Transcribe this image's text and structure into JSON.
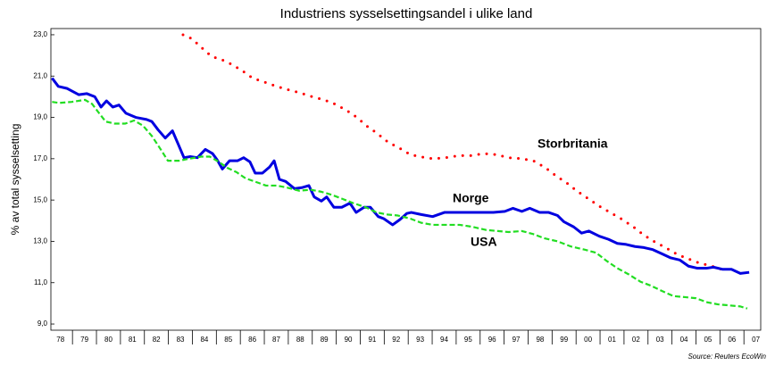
{
  "chart_data": {
    "type": "line",
    "title": "Industriens sysselsettingsandel i ulike land",
    "y_label": "% av total sysselsetting",
    "source": "Source: Reuters EcoWin",
    "xlim": [
      1978.1,
      2007.7
    ],
    "ylim": [
      8.7,
      23.3
    ],
    "yticks": [
      {
        "value": 9,
        "label": "9,0"
      },
      {
        "value": 11,
        "label": "11,0"
      },
      {
        "value": 13,
        "label": "13,0"
      },
      {
        "value": 15,
        "label": "15,0"
      },
      {
        "value": 17,
        "label": "17,0"
      },
      {
        "value": 19,
        "label": "19,0"
      },
      {
        "value": 21,
        "label": "21,0"
      },
      {
        "value": 23,
        "label": "23,0"
      }
    ],
    "xticks": [
      {
        "value": 1978,
        "label": "78"
      },
      {
        "value": 1979,
        "label": "79"
      },
      {
        "value": 1980,
        "label": "80"
      },
      {
        "value": 1981,
        "label": "81"
      },
      {
        "value": 1982,
        "label": "82"
      },
      {
        "value": 1983,
        "label": "83"
      },
      {
        "value": 1984,
        "label": "84"
      },
      {
        "value": 1985,
        "label": "85"
      },
      {
        "value": 1986,
        "label": "86"
      },
      {
        "value": 1987,
        "label": "87"
      },
      {
        "value": 1988,
        "label": "88"
      },
      {
        "value": 1989,
        "label": "89"
      },
      {
        "value": 1990,
        "label": "90"
      },
      {
        "value": 1991,
        "label": "91"
      },
      {
        "value": 1992,
        "label": "92"
      },
      {
        "value": 1993,
        "label": "93"
      },
      {
        "value": 1994,
        "label": "94"
      },
      {
        "value": 1995,
        "label": "95"
      },
      {
        "value": 1996,
        "label": "96"
      },
      {
        "value": 1997,
        "label": "97"
      },
      {
        "value": 1998,
        "label": "98"
      },
      {
        "value": 1999,
        "label": "99"
      },
      {
        "value": 2000,
        "label": "00"
      },
      {
        "value": 2001,
        "label": "01"
      },
      {
        "value": 2002,
        "label": "02"
      },
      {
        "value": 2003,
        "label": "03"
      },
      {
        "value": 2004,
        "label": "04"
      },
      {
        "value": 2005,
        "label": "05"
      },
      {
        "value": 2006,
        "label": "06"
      },
      {
        "value": 2007,
        "label": "07"
      }
    ],
    "series": [
      {
        "name": "Storbritania",
        "color": "#ff0000",
        "style": "dotted",
        "x": [
          1983.61,
          1983.99,
          1984.36,
          1984.8,
          1985.21,
          1985.58,
          1986.03,
          1986.51,
          1987.03,
          1987.52,
          1987.96,
          1988.45,
          1989.0,
          1989.49,
          1989.93,
          1990.42,
          1990.86,
          1991.31,
          1991.68,
          1992.16,
          1992.65,
          1993.09,
          1993.46,
          1994.02,
          1994.58,
          1995.1,
          1995.62,
          1996.14,
          1996.66,
          1997.18,
          1997.74,
          1998.22,
          1998.74,
          1999.19,
          1999.64,
          2000.08,
          2000.53,
          2000.97,
          2001.42,
          2001.87,
          2002.39,
          2002.83,
          2003.32,
          2003.8,
          2004.25,
          2004.69,
          2005.14,
          2005.66,
          2006.18
        ],
        "values": [
          23.0,
          22.8,
          22.4,
          21.95,
          21.8,
          21.6,
          21.3,
          20.9,
          20.7,
          20.5,
          20.35,
          20.2,
          20.0,
          19.85,
          19.65,
          19.35,
          19.0,
          18.55,
          18.25,
          17.8,
          17.5,
          17.2,
          17.1,
          17.0,
          17.05,
          17.15,
          17.15,
          17.25,
          17.2,
          17.05,
          17.0,
          16.9,
          16.55,
          16.15,
          15.8,
          15.4,
          15.05,
          14.7,
          14.4,
          14.1,
          13.7,
          13.3,
          12.95,
          12.65,
          12.35,
          12.15,
          11.95,
          11.8,
          11.6
        ]
      },
      {
        "name": "Norge",
        "color": "#0000e0",
        "style": "solid",
        "x": [
          1978.15,
          1978.41,
          1978.78,
          1979.26,
          1979.6,
          1979.93,
          1980.19,
          1980.42,
          1980.68,
          1980.94,
          1981.23,
          1981.64,
          1982.09,
          1982.31,
          1982.57,
          1982.87,
          1983.17,
          1983.43,
          1983.65,
          1983.91,
          1984.21,
          1984.54,
          1984.84,
          1985.03,
          1985.25,
          1985.55,
          1985.88,
          1986.14,
          1986.4,
          1986.62,
          1986.92,
          1987.22,
          1987.41,
          1987.63,
          1987.89,
          1988.26,
          1988.56,
          1988.86,
          1989.08,
          1989.38,
          1989.6,
          1989.9,
          1990.23,
          1990.57,
          1990.83,
          1991.16,
          1991.42,
          1991.75,
          1991.98,
          1992.35,
          1992.65,
          1992.94,
          1993.13,
          1993.54,
          1994.02,
          1994.51,
          1994.95,
          1995.51,
          1996.07,
          1996.55,
          1997.03,
          1997.37,
          1997.74,
          1998.07,
          1998.48,
          1998.86,
          1999.23,
          1999.49,
          1999.9,
          2000.23,
          2000.53,
          2000.97,
          2001.35,
          2001.72,
          2002.09,
          2002.46,
          2002.83,
          2003.2,
          2003.58,
          2003.95,
          2004.32,
          2004.69,
          2005.06,
          2005.44,
          2005.73,
          2006.1,
          2006.48,
          2006.85,
          2007.22
        ],
        "values": [
          20.9,
          20.5,
          20.4,
          20.1,
          20.15,
          20.0,
          19.5,
          19.8,
          19.5,
          19.6,
          19.2,
          19.0,
          18.9,
          18.8,
          18.4,
          18.0,
          18.35,
          17.65,
          17.05,
          17.1,
          17.05,
          17.45,
          17.25,
          16.95,
          16.5,
          16.9,
          16.9,
          17.05,
          16.85,
          16.3,
          16.3,
          16.6,
          16.9,
          16.0,
          15.9,
          15.55,
          15.6,
          15.7,
          15.15,
          14.95,
          15.15,
          14.65,
          14.65,
          14.85,
          14.4,
          14.65,
          14.65,
          14.2,
          14.1,
          13.8,
          14.05,
          14.35,
          14.4,
          14.3,
          14.2,
          14.4,
          14.4,
          14.4,
          14.4,
          14.4,
          14.45,
          14.6,
          14.45,
          14.6,
          14.4,
          14.4,
          14.25,
          13.95,
          13.7,
          13.4,
          13.5,
          13.25,
          13.1,
          12.9,
          12.85,
          12.75,
          12.7,
          12.6,
          12.4,
          12.2,
          12.1,
          11.8,
          11.7,
          11.7,
          11.75,
          11.65,
          11.65,
          11.45,
          11.5
        ]
      },
      {
        "name": "USA",
        "color": "#22dd22",
        "style": "dashed",
        "x": [
          1978.15,
          1978.45,
          1978.97,
          1979.52,
          1979.82,
          1980.08,
          1980.38,
          1980.75,
          1981.2,
          1981.57,
          1981.94,
          1982.31,
          1982.68,
          1982.98,
          1983.43,
          1983.87,
          1984.36,
          1984.73,
          1985.1,
          1985.47,
          1985.84,
          1986.22,
          1986.59,
          1987.07,
          1987.52,
          1987.96,
          1988.45,
          1988.93,
          1989.38,
          1989.82,
          1990.27,
          1990.71,
          1991.23,
          1991.68,
          1992.13,
          1992.57,
          1993.09,
          1993.54,
          1994.02,
          1994.58,
          1995.14,
          1995.7,
          1996.25,
          1996.74,
          1997.19,
          1997.74,
          1998.22,
          1998.67,
          1999.23,
          1999.79,
          2000.35,
          2000.83,
          2001.28,
          2001.72,
          2002.2,
          2002.68,
          2003.13,
          2003.58,
          2004.06,
          2004.54,
          2004.99,
          2005.47,
          2005.92,
          2006.4,
          2006.85,
          2007.14
        ],
        "values": [
          19.75,
          19.7,
          19.75,
          19.85,
          19.65,
          19.25,
          18.8,
          18.7,
          18.7,
          18.85,
          18.6,
          18.1,
          17.45,
          16.9,
          16.9,
          17.0,
          17.1,
          17.1,
          16.85,
          16.55,
          16.35,
          16.05,
          15.9,
          15.7,
          15.7,
          15.6,
          15.45,
          15.5,
          15.4,
          15.25,
          15.05,
          14.85,
          14.65,
          14.4,
          14.3,
          14.25,
          14.1,
          13.9,
          13.8,
          13.8,
          13.8,
          13.7,
          13.55,
          13.5,
          13.45,
          13.5,
          13.35,
          13.15,
          13.0,
          12.75,
          12.6,
          12.45,
          12.05,
          11.7,
          11.4,
          11.05,
          10.85,
          10.6,
          10.35,
          10.3,
          10.25,
          10.05,
          9.95,
          9.9,
          9.85,
          9.75
        ]
      }
    ]
  }
}
